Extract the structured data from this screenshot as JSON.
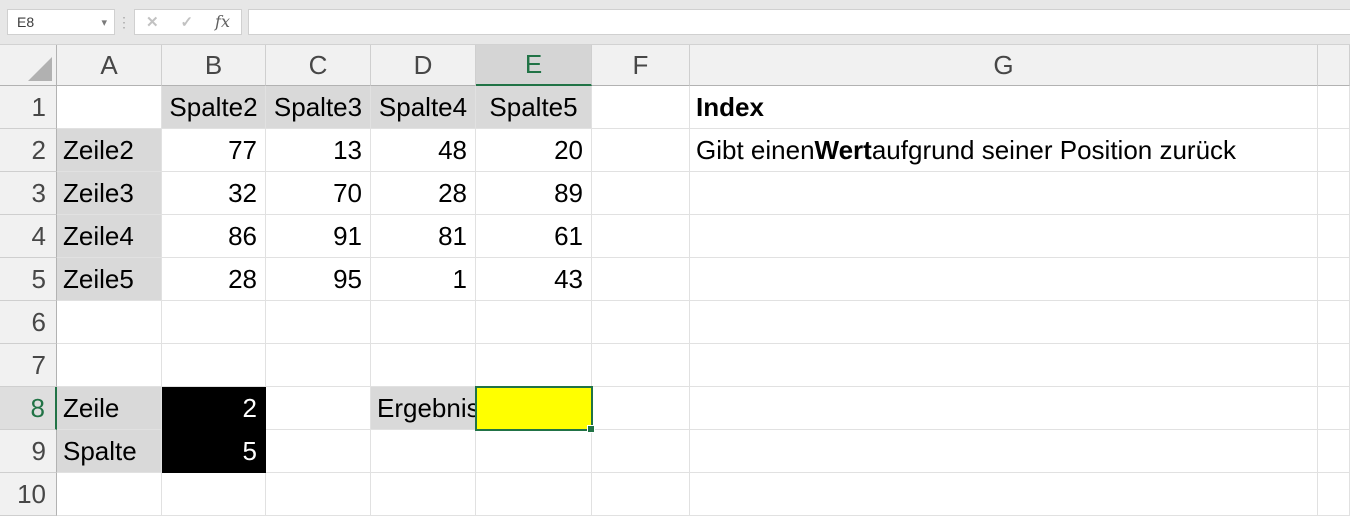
{
  "formula_bar": {
    "name_box": "E8",
    "caret_glyph": "▾",
    "dots_glyph": "⋮",
    "cancel_glyph": "✕",
    "enter_glyph": "✓",
    "fx_glyph": "fx",
    "formula": ""
  },
  "colors": {
    "accent_green": "#217346",
    "selected_cell_fill": "#FFFF00",
    "highlight_fill": "#000000",
    "label_cell_fill": "#D9D9D9",
    "header_bg": "#F1F1F1",
    "header_selected_bg": "#D5D5D5"
  },
  "grid": {
    "columns": [
      "A",
      "B",
      "C",
      "D",
      "E",
      "F",
      "G",
      ""
    ],
    "rows": [
      "1",
      "2",
      "3",
      "4",
      "5",
      "6",
      "7",
      "8",
      "9",
      "10"
    ],
    "selected": {
      "cell": "E8",
      "column": "E",
      "row": "8"
    },
    "cells": [
      {
        "ref": "B1",
        "text": "Spalte2",
        "fill": "gray",
        "align": "center"
      },
      {
        "ref": "C1",
        "text": "Spalte3",
        "fill": "gray",
        "align": "center"
      },
      {
        "ref": "D1",
        "text": "Spalte4",
        "fill": "gray",
        "align": "center"
      },
      {
        "ref": "E1",
        "text": "Spalte5",
        "fill": "gray",
        "align": "center"
      },
      {
        "ref": "G1",
        "text": "Index",
        "bold": true
      },
      {
        "ref": "A2",
        "text": "Zeile2",
        "fill": "gray"
      },
      {
        "ref": "B2",
        "text": "77",
        "align": "right"
      },
      {
        "ref": "C2",
        "text": "13",
        "align": "right"
      },
      {
        "ref": "D2",
        "text": "48",
        "align": "right"
      },
      {
        "ref": "E2",
        "text": "20",
        "align": "right"
      },
      {
        "ref": "G2",
        "parts": [
          {
            "text": "Gibt einen ",
            "bold": false
          },
          {
            "text": "Wert",
            "bold": true
          },
          {
            "text": " aufgrund seiner Position zurück",
            "bold": false
          }
        ]
      },
      {
        "ref": "A3",
        "text": "Zeile3",
        "fill": "gray"
      },
      {
        "ref": "B3",
        "text": "32",
        "align": "right"
      },
      {
        "ref": "C3",
        "text": "70",
        "align": "right"
      },
      {
        "ref": "D3",
        "text": "28",
        "align": "right"
      },
      {
        "ref": "E3",
        "text": "89",
        "align": "right"
      },
      {
        "ref": "A4",
        "text": "Zeile4",
        "fill": "gray"
      },
      {
        "ref": "B4",
        "text": "86",
        "align": "right"
      },
      {
        "ref": "C4",
        "text": "91",
        "align": "right"
      },
      {
        "ref": "D4",
        "text": "81",
        "align": "right"
      },
      {
        "ref": "E4",
        "text": "61",
        "align": "right"
      },
      {
        "ref": "A5",
        "text": "Zeile5",
        "fill": "gray"
      },
      {
        "ref": "B5",
        "text": "28",
        "align": "right"
      },
      {
        "ref": "C5",
        "text": "95",
        "align": "right"
      },
      {
        "ref": "D5",
        "text": "1",
        "align": "right"
      },
      {
        "ref": "E5",
        "text": "43",
        "align": "right"
      },
      {
        "ref": "A8",
        "text": "Zeile",
        "fill": "gray"
      },
      {
        "ref": "B8",
        "text": "2",
        "fill": "black",
        "align": "right"
      },
      {
        "ref": "D8",
        "text": "Ergebnis",
        "fill": "gray"
      },
      {
        "ref": "E8",
        "text": "",
        "fill": "yellow",
        "selected": true
      },
      {
        "ref": "A9",
        "text": "Spalte",
        "fill": "gray"
      },
      {
        "ref": "B9",
        "text": "5",
        "fill": "black",
        "align": "right"
      }
    ]
  }
}
